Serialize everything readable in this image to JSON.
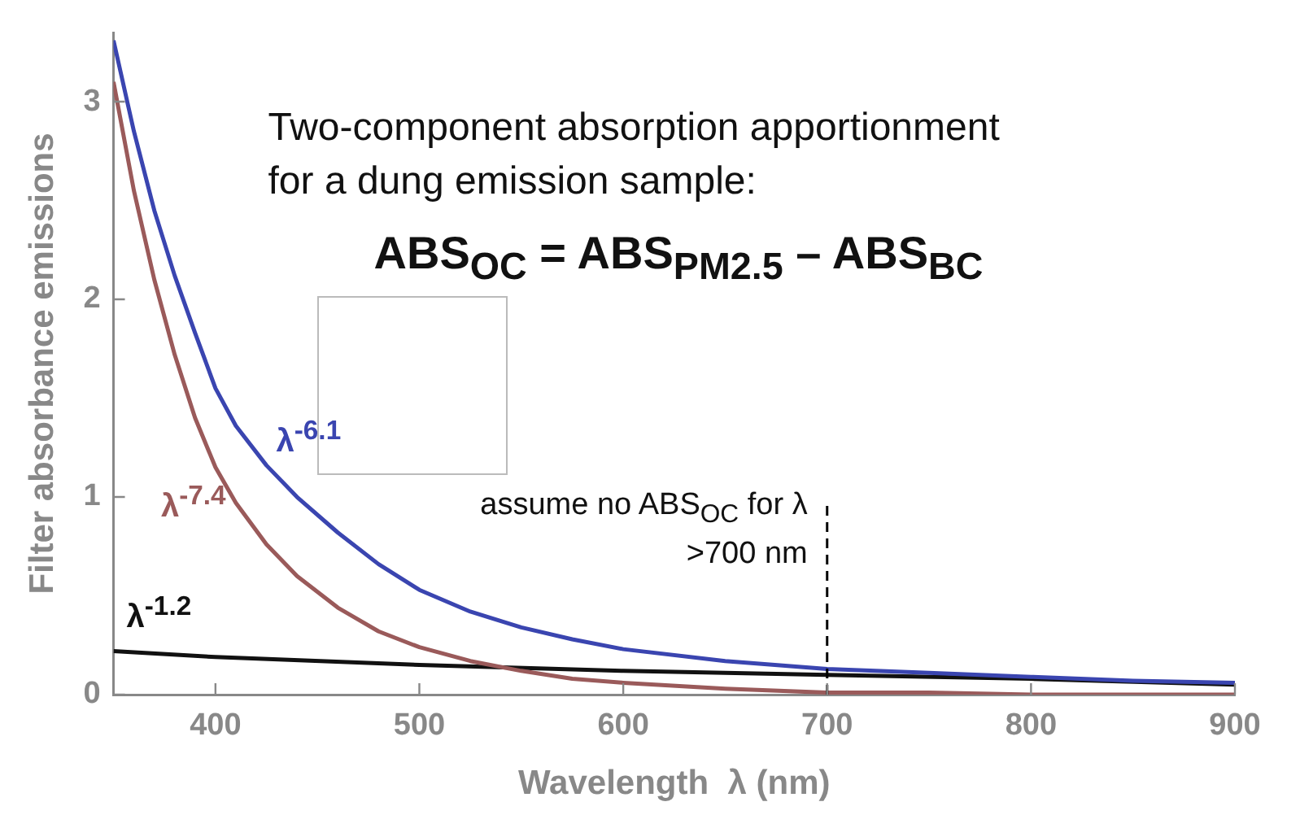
{
  "chart_data": {
    "type": "line",
    "title": "Two-component absorption apportionment for a dung emission sample:",
    "subtitle": "ABS$_{OC}$ = ABS$_{PM2.5}$ – ABS$_{BC}$",
    "xlabel": "Wavelength  λ (nm)",
    "ylabel": "Filter absorbance emissions",
    "xlim": [
      350,
      900
    ],
    "xticks": [
      400,
      500,
      600,
      700,
      800,
      900
    ],
    "ylim": [
      0,
      3.35
    ],
    "yticks": [
      0,
      1,
      2,
      3
    ],
    "grid": false,
    "legend": false,
    "marker": "none",
    "line_style": "solid",
    "series": [
      {
        "name": "λ$^{-6.1}$",
        "color": "#3a45b0",
        "x": [
          350,
          360,
          370,
          380,
          390,
          400,
          410,
          425,
          440,
          460,
          480,
          500,
          525,
          550,
          575,
          600,
          650,
          700,
          750,
          800,
          850,
          900
        ],
        "values": [
          3.31,
          2.85,
          2.45,
          2.12,
          1.83,
          1.55,
          1.36,
          1.16,
          1.0,
          0.82,
          0.66,
          0.53,
          0.42,
          0.34,
          0.28,
          0.23,
          0.17,
          0.13,
          0.11,
          0.09,
          0.07,
          0.06
        ]
      },
      {
        "name": "λ$^{-7.4}$",
        "color": "#9a5a5a",
        "x": [
          350,
          360,
          370,
          380,
          390,
          400,
          410,
          425,
          440,
          460,
          480,
          500,
          525,
          550,
          575,
          600,
          650,
          700,
          750,
          800,
          850,
          900
        ],
        "values": [
          3.1,
          2.55,
          2.1,
          1.72,
          1.4,
          1.15,
          0.97,
          0.76,
          0.6,
          0.44,
          0.32,
          0.24,
          0.17,
          0.12,
          0.08,
          0.06,
          0.03,
          0.01,
          0.01,
          0,
          0,
          0
        ]
      },
      {
        "name": "λ$^{-1.2}$",
        "color": "#111111",
        "x": [
          350,
          400,
          500,
          600,
          700,
          800,
          900
        ],
        "values": [
          0.22,
          0.19,
          0.15,
          0.12,
          0.1,
          0.08,
          0.05
        ]
      }
    ],
    "ref_lines": [
      {
        "axis": "x",
        "value": 700,
        "label": "assume no ABS$_{OC}$ for λ >700 nm",
        "line_style": "dashed"
      }
    ]
  }
}
